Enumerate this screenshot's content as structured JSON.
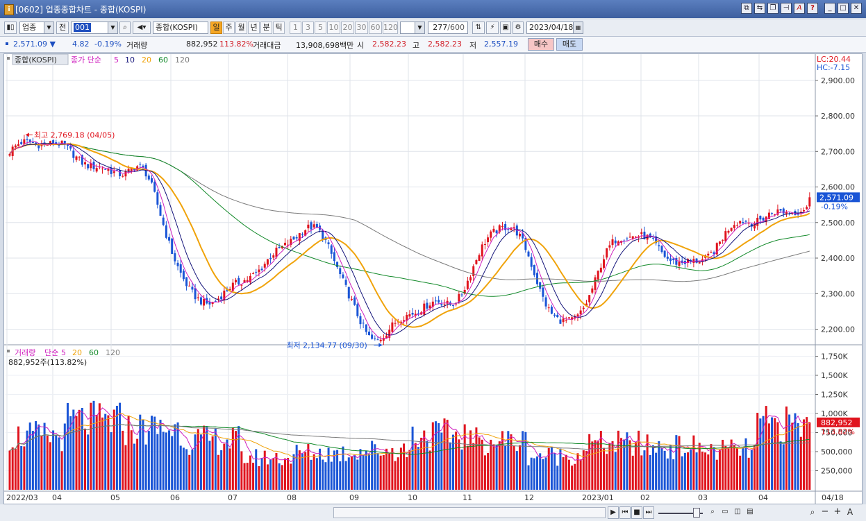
{
  "window": {
    "title": "[0602] 업종종합차트 - 종합(KOSPI)",
    "buttons": [
      "link-icon",
      "toggle-icon",
      "copy-icon",
      "pin-icon",
      "font-icon",
      "help-icon",
      "minimize-icon",
      "maximize-icon",
      "close-icon"
    ]
  },
  "toolbar": {
    "market": "업종",
    "all_label": "전",
    "code": "001",
    "sector_name": "종합(KOSPI)",
    "periods": [
      "일",
      "주",
      "월",
      "년",
      "분",
      "틱"
    ],
    "active_period": "일",
    "intervals": [
      "1",
      "3",
      "5",
      "10",
      "20",
      "30",
      "60",
      "120"
    ],
    "count": "277",
    "count_max": "/600",
    "date": "2023/04/18"
  },
  "quote": {
    "price": "2,571.09",
    "change": "4.82",
    "change_pct": "-0.19%",
    "volume_label": "거래량",
    "volume": "882,952",
    "volume_ratio": "113.82%",
    "amount_label": "거래대금",
    "amount": "13,908,698백만",
    "open_label": "시",
    "open": "2,582.23",
    "high_label": "고",
    "high": "2,582.23",
    "low_label": "저",
    "low": "2,557.19",
    "buy": "매수",
    "sell": "매도"
  },
  "chart_data": [
    {
      "type": "candlestick",
      "title": "종합(KOSPI)",
      "legend": [
        "종가 단순",
        "5",
        "10",
        "20",
        "60",
        "120"
      ],
      "y_ticks": [
        "2,200.00",
        "2,300.00",
        "2,400.00",
        "2,500.00",
        "2,600.00",
        "2,700.00",
        "2,800.00",
        "2,900.00"
      ],
      "ylim": [
        2160,
        2925
      ],
      "x_ticks": [
        "2022/03",
        "04",
        "05",
        "06",
        "07",
        "08",
        "09",
        "10",
        "11",
        "12",
        "2023/01",
        "02",
        "03",
        "04"
      ],
      "last_x_label": "04/18",
      "lc_label": "LC:20.44",
      "hc_label": "HC:-7.15",
      "current_tag": "2,571.09",
      "current_pct": "-0.19%",
      "max_label": "최고 2,769.18 (04/05)",
      "min_label": "최저 2,134.77 (09/30)",
      "colors": {
        "up": "#e0141e",
        "down": "#1a55d6",
        "ma5": "#cf1fbf",
        "ma10": "#14147a",
        "ma20": "#f0a30a",
        "ma60": "#138a2a",
        "ma120": "#7a7a7a"
      },
      "monthly_close": [
        {
          "month": "2022/03",
          "close": 2700
        },
        {
          "month": "2022/04",
          "close": 2700
        },
        {
          "month": "2022/05",
          "close": 2650
        },
        {
          "month": "2022/06",
          "close": 2300
        },
        {
          "month": "2022/07",
          "close": 2350
        },
        {
          "month": "2022/08",
          "close": 2490
        },
        {
          "month": "2022/09",
          "close": 2160
        },
        {
          "month": "2022/10",
          "close": 2290
        },
        {
          "month": "2022/11",
          "close": 2470
        },
        {
          "month": "2022/12",
          "close": 2240
        },
        {
          "month": "2023/01",
          "close": 2440
        },
        {
          "month": "2023/02",
          "close": 2410
        },
        {
          "month": "2023/03",
          "close": 2480
        },
        {
          "month": "2023/04",
          "close": 2571
        }
      ]
    },
    {
      "type": "bar",
      "title": "거래량",
      "legend": [
        "단순",
        "5",
        "20",
        "60",
        "120"
      ],
      "info": "882,952주(113.82%)",
      "y_ticks": [
        "250,000",
        "500,000",
        "750,000",
        "1,000K",
        "1,250K",
        "1,500K",
        "1,750K"
      ],
      "ylim": [
        0,
        1800000
      ],
      "current_tag": "882,952",
      "current_pct": "113.82%",
      "monthly_avg_volume": [
        {
          "month": "2022/03",
          "volume": 700000
        },
        {
          "month": "2022/04",
          "volume": 900000
        },
        {
          "month": "2022/05",
          "volume": 800000
        },
        {
          "month": "2022/06",
          "volume": 650000
        },
        {
          "month": "2022/07",
          "volume": 420000
        },
        {
          "month": "2022/08",
          "volume": 480000
        },
        {
          "month": "2022/09",
          "volume": 520000
        },
        {
          "month": "2022/10",
          "volume": 720000
        },
        {
          "month": "2022/11",
          "volume": 640000
        },
        {
          "month": "2022/12",
          "volume": 450000
        },
        {
          "month": "2023/01",
          "volume": 600000
        },
        {
          "month": "2023/02",
          "volume": 560000
        },
        {
          "month": "2023/03",
          "volume": 520000
        },
        {
          "month": "2023/04",
          "volume": 850000
        }
      ]
    }
  ],
  "bottom": {
    "buttons": [
      "play-icon",
      "rewind-icon",
      "stop-icon",
      "forward-icon",
      "zoom-out-icon",
      "minus-icon",
      "plus-icon",
      "text-icon"
    ]
  }
}
